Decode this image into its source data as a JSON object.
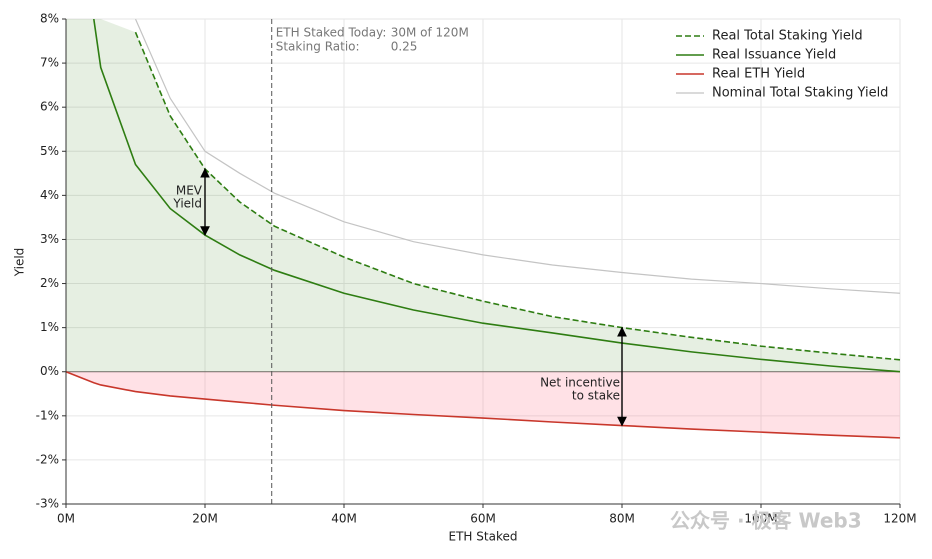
{
  "chart_data": {
    "type": "line",
    "x_label": "ETH Staked",
    "y_label": "Yield",
    "x": [
      0,
      4,
      5,
      10,
      15,
      20,
      25,
      30,
      40,
      50,
      60,
      70,
      80,
      90,
      100,
      110,
      120
    ],
    "series": [
      {
        "name": "Real Total Staking Yield",
        "color": "#2e7d12",
        "dashed": true,
        "values": [
          null,
          null,
          null,
          7.7,
          5.8,
          4.6,
          3.85,
          3.3,
          2.6,
          2.0,
          1.6,
          1.25,
          1.0,
          0.78,
          0.58,
          0.42,
          0.27
        ]
      },
      {
        "name": "Real Issuance Yield",
        "color": "#2e7d12",
        "values": [
          null,
          8.0,
          6.9,
          4.7,
          3.7,
          3.1,
          2.65,
          2.3,
          1.78,
          1.4,
          1.1,
          0.88,
          0.65,
          0.45,
          0.28,
          0.13,
          0.0
        ]
      },
      {
        "name": "Real ETH Yield",
        "color": "#c8372b",
        "values": [
          0.0,
          -0.25,
          -0.3,
          -0.45,
          -0.55,
          -0.62,
          -0.69,
          -0.76,
          -0.88,
          -0.97,
          -1.05,
          -1.14,
          -1.22,
          -1.3,
          -1.37,
          -1.44,
          -1.5
        ]
      },
      {
        "name": "Nominal Total Staking Yield",
        "color": "#c4c4c4",
        "values": [
          null,
          null,
          null,
          8.0,
          6.2,
          5.0,
          4.5,
          4.05,
          3.4,
          2.95,
          2.65,
          2.42,
          2.25,
          2.1,
          2.0,
          1.88,
          1.78
        ]
      }
    ],
    "xlim": [
      0,
      120
    ],
    "ylim": [
      -3,
      8
    ],
    "xticks": [
      {
        "value": 0,
        "label": "0M"
      },
      {
        "value": 20,
        "label": "20M"
      },
      {
        "value": 40,
        "label": "40M"
      },
      {
        "value": 60,
        "label": "60M"
      },
      {
        "value": 80,
        "label": "80M"
      },
      {
        "value": 100,
        "label": "100M"
      },
      {
        "value": 120,
        "label": "120M"
      }
    ],
    "yticks": [
      {
        "value": -3,
        "label": "-3%"
      },
      {
        "value": -2,
        "label": "-2%"
      },
      {
        "value": -1,
        "label": "-1%"
      },
      {
        "value": 0,
        "label": "0%"
      },
      {
        "value": 1,
        "label": "1%"
      },
      {
        "value": 2,
        "label": "2%"
      },
      {
        "value": 3,
        "label": "3%"
      },
      {
        "value": 4,
        "label": "4%"
      },
      {
        "value": 5,
        "label": "5%"
      },
      {
        "value": 6,
        "label": "6%"
      },
      {
        "value": 7,
        "label": "7%"
      },
      {
        "value": 8,
        "label": "8%"
      }
    ],
    "grid": true,
    "legend": "upper right",
    "vline": 29.6,
    "info_lines": [
      [
        "ETH Staked Today:",
        "30M of 120M"
      ],
      [
        "Staking Ratio:",
        "0.25"
      ]
    ],
    "mev_label": [
      "MEV",
      "Yield"
    ],
    "incentive_label": [
      "Net incentive",
      "to stake"
    ],
    "watermark": "公众号 · 极客 Web3"
  }
}
